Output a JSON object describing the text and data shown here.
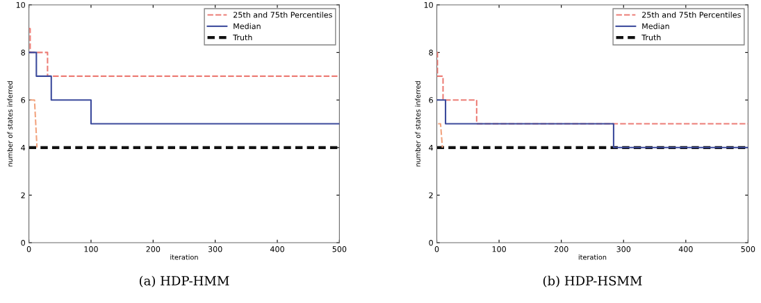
{
  "chart_data": [
    {
      "type": "step",
      "xlabel": "iteration",
      "ylabel": "number of states inferred",
      "xlim": [
        0,
        500
      ],
      "ylim": [
        0,
        10
      ],
      "xticks": [
        0,
        100,
        200,
        300,
        400,
        500
      ],
      "yticks": [
        0,
        2,
        4,
        6,
        8,
        10
      ],
      "legend": "top right",
      "annotations": [
        "(a) HDP-HMM"
      ],
      "series": [
        {
          "name": "25th and 75th Percentiles",
          "color": "#ec7d76",
          "line_style": "dashed",
          "x": [
            0,
            2,
            30,
            500
          ],
          "values": [
            9,
            8,
            7,
            7
          ]
        },
        {
          "type": "line",
          "color": "#f2a37e",
          "line_style": "dashed",
          "x": [
            2,
            9,
            13
          ],
          "values": [
            6,
            6,
            4
          ]
        },
        {
          "name": "Median",
          "color": "#3b4a9c",
          "line_style": "solid",
          "x": [
            0,
            12,
            36,
            100,
            500
          ],
          "values": [
            8,
            7,
            6,
            5,
            5
          ]
        },
        {
          "name": "Truth",
          "color": "#111111",
          "line_style": "dashed",
          "x": [
            0,
            500
          ],
          "values": [
            4,
            4
          ]
        }
      ]
    },
    {
      "type": "step",
      "xlabel": "iteration",
      "ylabel": "number of states inferred",
      "xlim": [
        0,
        500
      ],
      "ylim": [
        0,
        10
      ],
      "xticks": [
        0,
        100,
        200,
        300,
        400,
        500
      ],
      "yticks": [
        0,
        2,
        4,
        6,
        8,
        10
      ],
      "legend": "top right",
      "annotations": [
        "(b) HDP-HSMM"
      ],
      "series": [
        {
          "name": "25th and 75th Percentiles",
          "color": "#ec7d76",
          "line_style": "dashed",
          "x": [
            0,
            1,
            10,
            64,
            500
          ],
          "values": [
            8,
            7,
            6,
            5,
            5
          ]
        },
        {
          "type": "line",
          "color": "#f2a37e",
          "line_style": "dashed",
          "x": [
            2,
            6,
            9
          ],
          "values": [
            5,
            5,
            4
          ]
        },
        {
          "name": "Median",
          "color": "#3b4a9c",
          "line_style": "solid",
          "x": [
            0,
            14,
            284,
            500
          ],
          "values": [
            6,
            5,
            4,
            4
          ]
        },
        {
          "name": "Truth",
          "color": "#111111",
          "line_style": "dashed",
          "x": [
            0,
            500
          ],
          "values": [
            4,
            4
          ]
        }
      ]
    }
  ]
}
